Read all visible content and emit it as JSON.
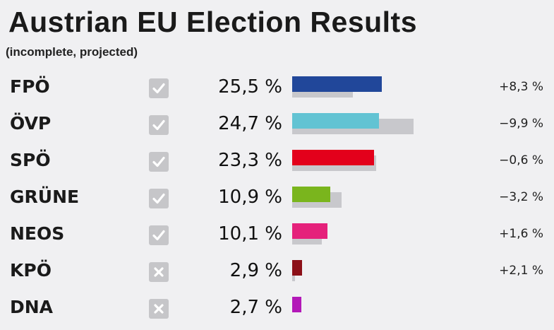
{
  "title": "Austrian EU Election Results",
  "subtitle": "(incomplete, projected)",
  "chart_data": {
    "type": "bar",
    "orientation": "horizontal",
    "title": "Austrian EU Election Results",
    "subtitle": "(incomplete, projected)",
    "categories": [
      "FPÖ",
      "ÖVP",
      "SPÖ",
      "GRÜNE",
      "NEOS",
      "KPÖ",
      "DNA"
    ],
    "series": [
      {
        "values": [
          25.5,
          24.7,
          23.3,
          10.9,
          10.1,
          2.9,
          2.7
        ]
      },
      {
        "values": [
          17.2,
          34.6,
          23.9,
          14.1,
          8.5,
          0.8,
          null
        ]
      }
    ],
    "value_labels": [
      "25,5 %",
      "24,7 %",
      "23,3 %",
      "10,9 %",
      "10,1 %",
      "2,9 %",
      "2,7 %"
    ],
    "change_labels": [
      "+8,3 %",
      "−9,9 %",
      "−0,6 %",
      "−3,2 %",
      "+1,6 %",
      "+2,1 %",
      ""
    ],
    "status": [
      "check",
      "check",
      "check",
      "check",
      "check",
      "cross",
      "cross"
    ],
    "colors": [
      "#21479a",
      "#62c3d3",
      "#e3001b",
      "#7ab51d",
      "#e5217b",
      "#8c1018",
      "#b318b8"
    ],
    "previous_color": "#c8c8cc",
    "xlim": [
      0,
      38
    ]
  }
}
